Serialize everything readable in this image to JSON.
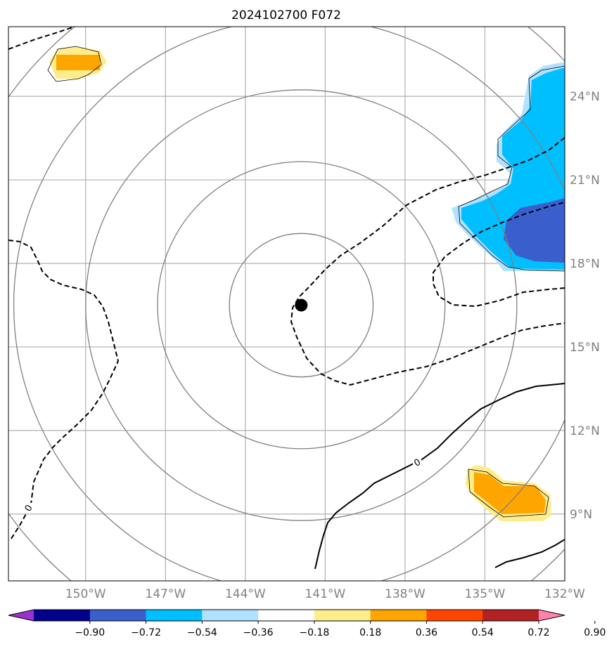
{
  "title": "2024102700 F072",
  "map": {
    "projection": "lon-lat",
    "lon_range": [
      -152.9,
      -132.0
    ],
    "lat_range": [
      6.6,
      26.5
    ],
    "center": {
      "lon": -141.9,
      "lat": 16.5
    },
    "range_ring_radii_deg": [
      2.7,
      5.4,
      8.1,
      10.8,
      13.5
    ],
    "lon_ticks": [
      {
        "value": -150,
        "label": "150°W"
      },
      {
        "value": -147,
        "label": "147°W"
      },
      {
        "value": -144,
        "label": "144°W"
      },
      {
        "value": -141,
        "label": "141°W"
      },
      {
        "value": -138,
        "label": "138°W"
      },
      {
        "value": -135,
        "label": "135°W"
      },
      {
        "value": -132,
        "label": "132°W"
      }
    ],
    "lat_ticks": [
      {
        "value": 9,
        "label": "9°N"
      },
      {
        "value": 12,
        "label": "12°N"
      },
      {
        "value": 15,
        "label": "15°N"
      },
      {
        "value": 18,
        "label": "18°N"
      },
      {
        "value": 21,
        "label": "21°N"
      },
      {
        "value": 24,
        "label": "24°N"
      }
    ],
    "contour_label": "0",
    "colors": {
      "ring": "#808080",
      "grid": "#b0b0b0",
      "tick_text": "#808080",
      "center_dot": "#000000"
    }
  },
  "colorbar": {
    "colors": [
      "#9932cc",
      "#00008b",
      "#3a5fcd",
      "#00bfff",
      "#b0e2ff",
      "#ffffff",
      "#ffec8b",
      "#ffa500",
      "#ff4500",
      "#b22222",
      "#ff82ab"
    ],
    "labels": [
      "−0.90",
      "−0.72",
      "−0.54",
      "−0.36",
      "−0.18",
      "0.18",
      "0.36",
      "0.54",
      "0.72",
      "0.90"
    ]
  }
}
